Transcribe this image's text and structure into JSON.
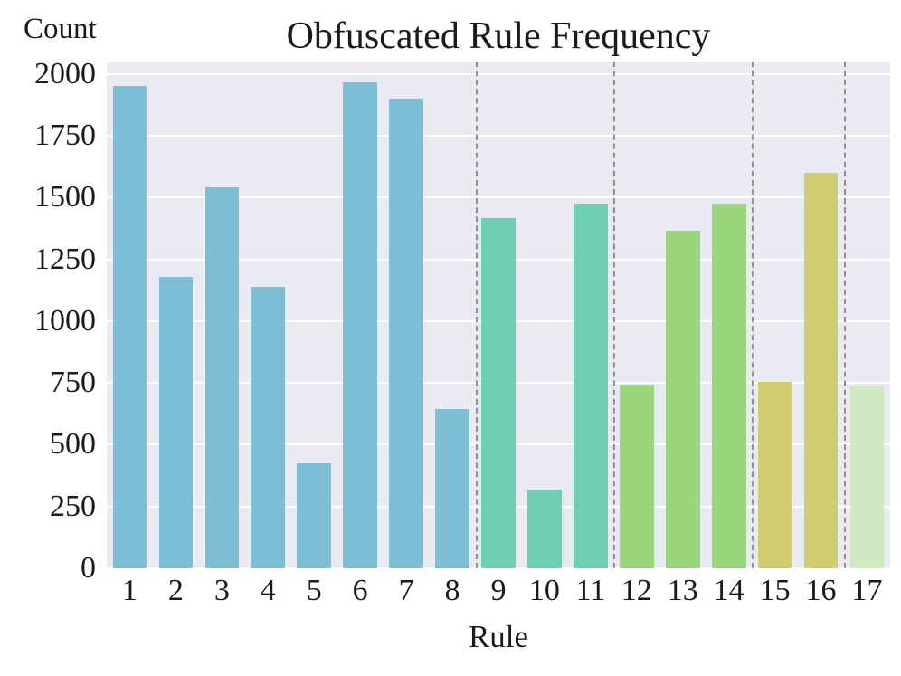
{
  "chart_data": {
    "type": "bar",
    "title": "Obfuscated Rule Frequency",
    "xlabel": "Rule",
    "ylabel": "Count",
    "categories": [
      "1",
      "2",
      "3",
      "4",
      "5",
      "6",
      "7",
      "8",
      "9",
      "10",
      "11",
      "12",
      "13",
      "14",
      "15",
      "16",
      "17"
    ],
    "values": [
      1950,
      1180,
      1540,
      1140,
      425,
      1965,
      1900,
      645,
      1415,
      320,
      1475,
      745,
      1365,
      1475,
      755,
      1600,
      735
    ],
    "bar_colors": [
      "#7ebfd6",
      "#7ebfd6",
      "#7ebfd6",
      "#7ebfd6",
      "#7ebfd6",
      "#7ebfd6",
      "#7ebfd6",
      "#7ebfd6",
      "#6fceb4",
      "#6fceb4",
      "#6fceb4",
      "#99d57c",
      "#99d57c",
      "#99d57c",
      "#d1cc6f",
      "#d1cc6f",
      "#cfeac0"
    ],
    "ylim": [
      0,
      2050
    ],
    "yticks": [
      0,
      250,
      500,
      750,
      1000,
      1250,
      1500,
      1750,
      2000
    ],
    "separators_after_index": [
      7,
      10,
      13,
      15
    ],
    "grid": true,
    "legend": "none",
    "plot_bg": "#eaeaf2",
    "grid_color": "#ffffff",
    "separator_color": "#909090"
  }
}
